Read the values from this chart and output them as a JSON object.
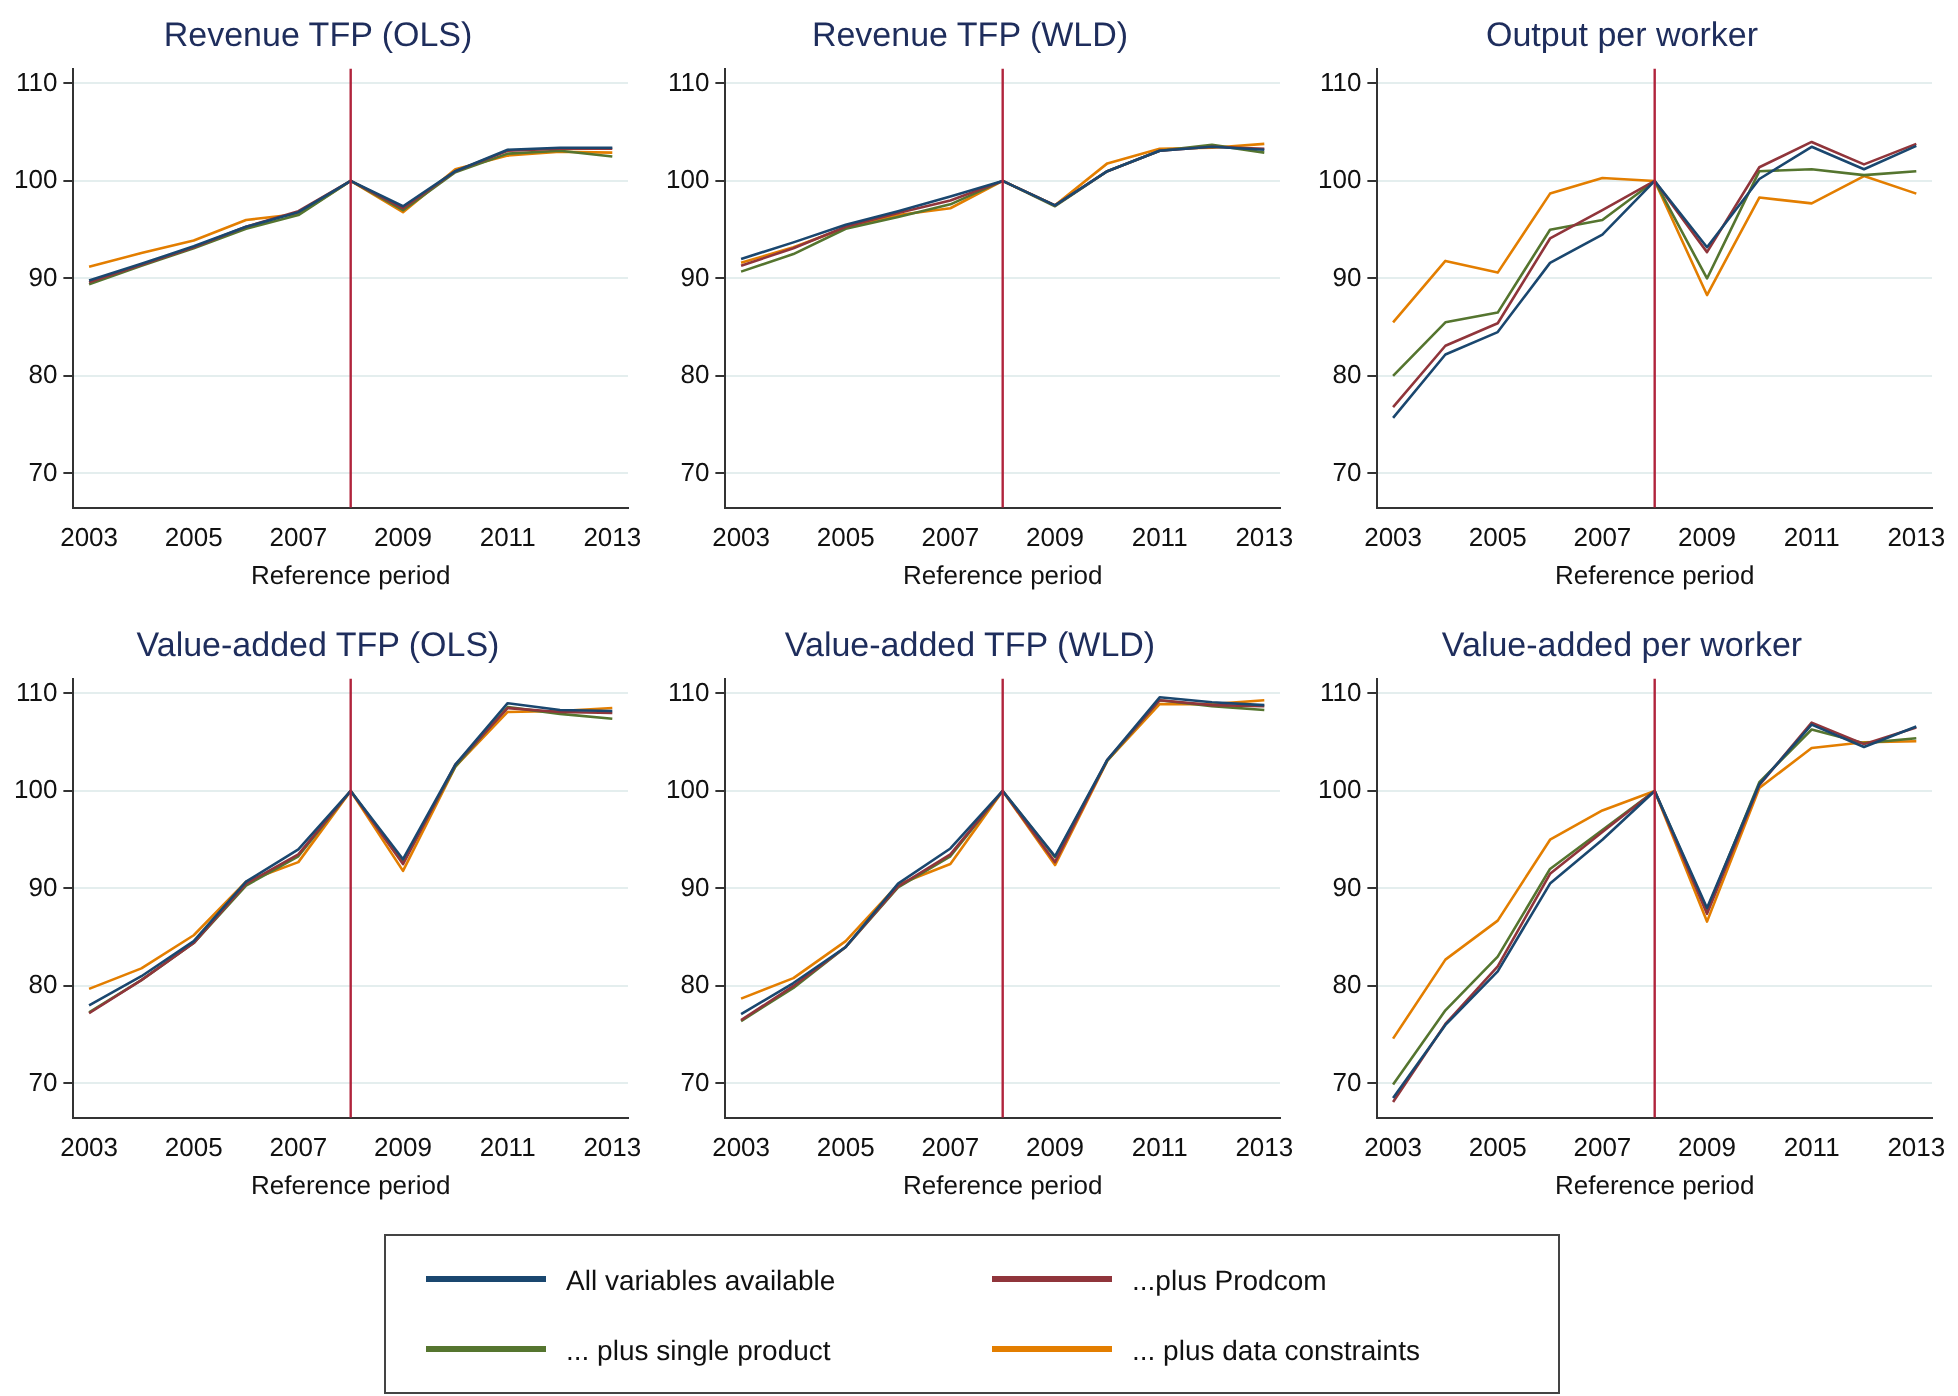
{
  "chart_data": [
    {
      "type": "line",
      "title": "Revenue TFP (OLS)",
      "xlabel": "Reference period",
      "x": [
        2003,
        2004,
        2005,
        2006,
        2007,
        2008,
        2009,
        2010,
        2011,
        2012,
        2013
      ],
      "xlim": [
        2002.7,
        2013.3
      ],
      "xticks": [
        2003,
        2005,
        2007,
        2009,
        2011,
        2013
      ],
      "ylim": [
        66.5,
        111.5
      ],
      "yticks": [
        70,
        80,
        90,
        100,
        110
      ],
      "grid": "y",
      "legend": "bottom",
      "ref_lines": [
        {
          "axis": "x",
          "value": 2008,
          "color": "#b0243c"
        }
      ],
      "series": [
        {
          "name": "All variables available",
          "color": "#1a476f",
          "values": [
            89.8,
            91.5,
            93.3,
            95.3,
            96.8,
            100,
            97.4,
            101,
            103.2,
            103.4,
            103.4
          ]
        },
        {
          "name": "...plus Prodcom",
          "color": "#90353b",
          "values": [
            89.6,
            91.4,
            93.2,
            95.3,
            96.9,
            100,
            97.2,
            101,
            103.1,
            103.3,
            103.3
          ]
        },
        {
          "name": "... plus single product",
          "color": "#55752f",
          "values": [
            89.4,
            91.3,
            93.1,
            95.1,
            96.5,
            100,
            97,
            100.9,
            102.8,
            103.1,
            102.5
          ]
        },
        {
          "name": "... plus data constraints",
          "color": "#e37e00",
          "values": [
            91.2,
            92.6,
            93.9,
            96,
            96.6,
            100,
            96.8,
            101.2,
            102.6,
            103,
            102.9
          ]
        }
      ]
    },
    {
      "type": "line",
      "title": "Revenue TFP (WLD)",
      "xlabel": "Reference period",
      "x": [
        2003,
        2004,
        2005,
        2006,
        2007,
        2008,
        2009,
        2010,
        2011,
        2012,
        2013
      ],
      "xlim": [
        2002.7,
        2013.3
      ],
      "xticks": [
        2003,
        2005,
        2007,
        2009,
        2011,
        2013
      ],
      "ylim": [
        66.5,
        111.5
      ],
      "yticks": [
        70,
        80,
        90,
        100,
        110
      ],
      "grid": "y",
      "ref_lines": [
        {
          "axis": "x",
          "value": 2008,
          "color": "#b0243c"
        }
      ],
      "series": [
        {
          "color": "#1a476f",
          "values": [
            92,
            93.7,
            95.5,
            96.9,
            98.4,
            100,
            97.5,
            101,
            103.1,
            103.5,
            103.2
          ]
        },
        {
          "color": "#90353b",
          "values": [
            91.3,
            93.1,
            95.3,
            96.7,
            98,
            100,
            97.5,
            101,
            103.1,
            103.5,
            103.3
          ]
        },
        {
          "color": "#55752f",
          "values": [
            90.7,
            92.5,
            95.1,
            96.3,
            97.6,
            100,
            97.4,
            101,
            103.1,
            103.7,
            102.9
          ]
        },
        {
          "color": "#e37e00",
          "values": [
            91.6,
            93.2,
            95.2,
            96.5,
            97.2,
            100,
            97.5,
            101.8,
            103.3,
            103.4,
            103.8
          ]
        }
      ]
    },
    {
      "type": "line",
      "title": "Output per worker",
      "xlabel": "Reference period",
      "x": [
        2003,
        2004,
        2005,
        2006,
        2007,
        2008,
        2009,
        2010,
        2011,
        2012,
        2013
      ],
      "xlim": [
        2002.7,
        2013.3
      ],
      "xticks": [
        2003,
        2005,
        2007,
        2009,
        2011,
        2013
      ],
      "ylim": [
        66.5,
        111.5
      ],
      "yticks": [
        70,
        80,
        90,
        100,
        110
      ],
      "grid": "y",
      "ref_lines": [
        {
          "axis": "x",
          "value": 2008,
          "color": "#b0243c"
        }
      ],
      "series": [
        {
          "color": "#1a476f",
          "values": [
            75.7,
            82.2,
            84.5,
            91.6,
            94.5,
            100,
            93.2,
            100.2,
            103.5,
            101.2,
            103.6
          ]
        },
        {
          "color": "#90353b",
          "values": [
            76.8,
            83.1,
            85.4,
            94.1,
            97,
            100,
            92.7,
            101.4,
            104,
            101.7,
            103.8
          ]
        },
        {
          "color": "#55752f",
          "values": [
            80,
            85.5,
            86.5,
            95,
            96,
            100,
            90,
            101,
            101.2,
            100.6,
            101
          ]
        },
        {
          "color": "#e37e00",
          "values": [
            85.5,
            91.8,
            90.6,
            98.7,
            100.3,
            100,
            88.3,
            98.3,
            97.7,
            100.5,
            98.7
          ]
        }
      ]
    },
    {
      "type": "line",
      "title": "Value-added TFP (OLS)",
      "xlabel": "Reference period",
      "x": [
        2003,
        2004,
        2005,
        2006,
        2007,
        2008,
        2009,
        2010,
        2011,
        2012,
        2013
      ],
      "xlim": [
        2002.7,
        2013.3
      ],
      "xticks": [
        2003,
        2005,
        2007,
        2009,
        2011,
        2013
      ],
      "ylim": [
        66.5,
        111.5
      ],
      "yticks": [
        70,
        80,
        90,
        100,
        110
      ],
      "grid": "y",
      "ref_lines": [
        {
          "axis": "x",
          "value": 2008,
          "color": "#b0243c"
        }
      ],
      "series": [
        {
          "color": "#1a476f",
          "values": [
            78,
            81,
            84.6,
            90.7,
            94,
            100,
            93,
            102.7,
            109,
            108.3,
            108.2
          ]
        },
        {
          "color": "#90353b",
          "values": [
            77.2,
            80.6,
            84.4,
            90.5,
            93.5,
            100,
            92.5,
            102.7,
            108.5,
            108.1,
            108
          ]
        },
        {
          "color": "#55752f",
          "values": [
            77.3,
            80.6,
            84.4,
            90.3,
            93.3,
            100,
            92.7,
            102.5,
            108.6,
            107.9,
            107.4
          ]
        },
        {
          "color": "#e37e00",
          "values": [
            79.7,
            81.8,
            85.2,
            90.7,
            92.7,
            100,
            91.8,
            102.5,
            108.1,
            108.2,
            108.5
          ]
        }
      ]
    },
    {
      "type": "line",
      "title": "Value-added TFP (WLD)",
      "xlabel": "Reference period",
      "x": [
        2003,
        2004,
        2005,
        2006,
        2007,
        2008,
        2009,
        2010,
        2011,
        2012,
        2013
      ],
      "xlim": [
        2002.7,
        2013.3
      ],
      "xticks": [
        2003,
        2005,
        2007,
        2009,
        2011,
        2013
      ],
      "ylim": [
        66.5,
        111.5
      ],
      "yticks": [
        70,
        80,
        90,
        100,
        110
      ],
      "grid": "y",
      "ref_lines": [
        {
          "axis": "x",
          "value": 2008,
          "color": "#b0243c"
        }
      ],
      "series": [
        {
          "color": "#1a476f",
          "values": [
            77.1,
            80.3,
            84,
            90.5,
            94.1,
            100,
            93.3,
            103.2,
            109.6,
            109.1,
            108.8
          ]
        },
        {
          "color": "#90353b",
          "values": [
            76.5,
            80,
            84,
            90.2,
            93.5,
            100,
            92.7,
            103.2,
            109.3,
            108.8,
            108.7
          ]
        },
        {
          "color": "#55752f",
          "values": [
            76.4,
            79.8,
            84,
            90.1,
            93.3,
            100,
            93.2,
            103.1,
            109.3,
            108.7,
            108.3
          ]
        },
        {
          "color": "#e37e00",
          "values": [
            78.7,
            80.8,
            84.6,
            90.4,
            92.5,
            100,
            92.4,
            103.1,
            108.9,
            108.9,
            109.3
          ]
        }
      ]
    },
    {
      "type": "line",
      "title": "Value-added per worker",
      "xlabel": "Reference period",
      "x": [
        2003,
        2004,
        2005,
        2006,
        2007,
        2008,
        2009,
        2010,
        2011,
        2012,
        2013
      ],
      "xlim": [
        2002.7,
        2013.3
      ],
      "xticks": [
        2003,
        2005,
        2007,
        2009,
        2011,
        2013
      ],
      "ylim": [
        66.5,
        111.5
      ],
      "yticks": [
        70,
        80,
        90,
        100,
        110
      ],
      "grid": "y",
      "ref_lines": [
        {
          "axis": "x",
          "value": 2008,
          "color": "#b0243c"
        }
      ],
      "series": [
        {
          "color": "#1a476f",
          "values": [
            68.5,
            76,
            81.5,
            90.5,
            95,
            100,
            88,
            100.7,
            106.8,
            104.5,
            106.6
          ]
        },
        {
          "color": "#90353b",
          "values": [
            68.1,
            76.1,
            82,
            91.5,
            95.8,
            100,
            87.4,
            100.6,
            107,
            104.8,
            106.5
          ]
        },
        {
          "color": "#55752f",
          "values": [
            69.9,
            77.5,
            83,
            92,
            96,
            100,
            87.8,
            100.9,
            106.3,
            104.9,
            105.4
          ]
        },
        {
          "color": "#e37e00",
          "values": [
            74.6,
            82.7,
            86.7,
            95,
            98,
            100,
            86.6,
            100.3,
            104.4,
            105,
            105.1
          ]
        }
      ]
    }
  ]
}
